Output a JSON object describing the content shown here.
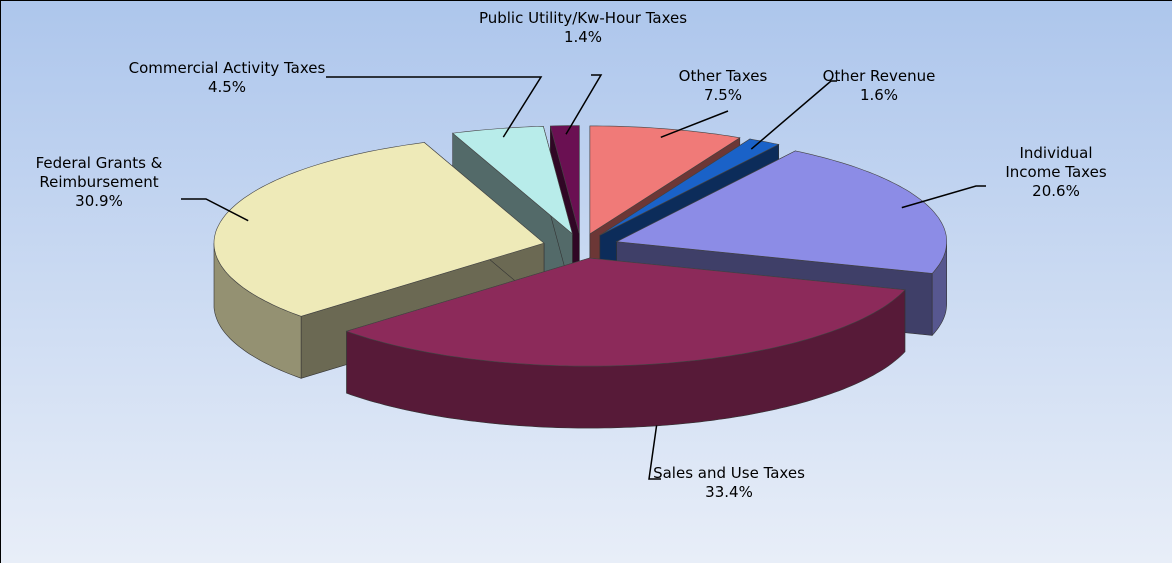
{
  "chart_data": {
    "type": "pie",
    "categories": [
      "Other Taxes",
      "Other Revenue",
      "Individual Income Taxes",
      "Sales and Use Taxes",
      "Federal Grants & Reimbursement",
      "Commercial Activity Taxes",
      "Public Utility/Kw-Hour Taxes"
    ],
    "values": [
      7.5,
      1.6,
      20.6,
      33.4,
      30.9,
      4.5,
      1.4
    ],
    "value_labels": [
      "7.5%",
      "1.6%",
      "20.6%",
      "33.4%",
      "30.9%",
      "4.5%",
      "1.4%"
    ],
    "colors": [
      "#f07a78",
      "#1a62c8",
      "#8c8ce6",
      "#8c2a5a",
      "#eeeab8",
      "#b8ecea",
      "#6a1052"
    ]
  }
}
